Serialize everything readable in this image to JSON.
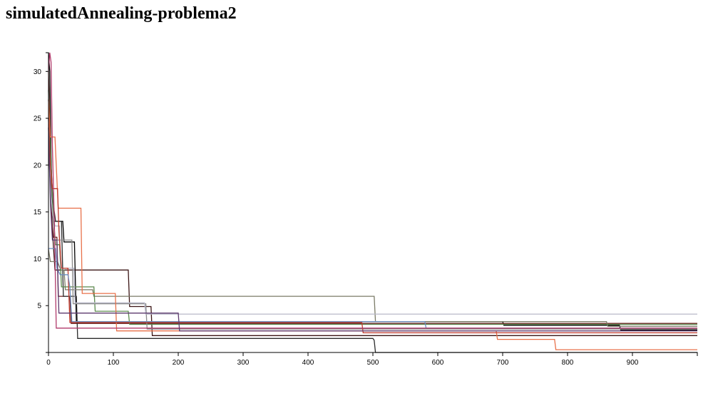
{
  "page": {
    "title": "simulatedAnnealing-problema2"
  },
  "chart_data": {
    "type": "line",
    "title": "simulatedAnnealing-problema2",
    "xlabel": "",
    "ylabel": "",
    "xlim": [
      0,
      1000
    ],
    "ylim": [
      0,
      32
    ],
    "x_ticks": [
      0,
      100,
      200,
      300,
      400,
      500,
      600,
      700,
      800,
      900
    ],
    "y_ticks": [
      5,
      10,
      15,
      20,
      25,
      30
    ],
    "grid": false,
    "legend": "none",
    "series": [
      {
        "color": "#000000",
        "points": [
          [
            0,
            32
          ],
          [
            2,
            30
          ],
          [
            4,
            21
          ],
          [
            6,
            15
          ],
          [
            8,
            14
          ],
          [
            22,
            14
          ],
          [
            24,
            11.8
          ],
          [
            40,
            11.8
          ],
          [
            43,
            3.3
          ],
          [
            700,
            3.3
          ],
          [
            702,
            2.9
          ],
          [
            880,
            2.9
          ],
          [
            882,
            2.4
          ],
          [
            1000,
            2.4
          ]
        ]
      },
      {
        "color": "#3a1414",
        "points": [
          [
            0,
            25
          ],
          [
            2,
            19
          ],
          [
            4,
            17
          ],
          [
            6,
            13
          ],
          [
            10,
            8.8
          ],
          [
            123,
            8.8
          ],
          [
            125,
            4.9
          ],
          [
            158,
            4.9
          ],
          [
            160,
            1.8
          ],
          [
            1000,
            1.8
          ]
        ]
      },
      {
        "color": "#6b1f1f",
        "points": [
          [
            0,
            30
          ],
          [
            3,
            22
          ],
          [
            5,
            14
          ],
          [
            8,
            12.3
          ],
          [
            13,
            12.3
          ],
          [
            15,
            6
          ],
          [
            33,
            6
          ],
          [
            35,
            3.1
          ],
          [
            380,
            3.1
          ],
          [
            1000,
            3.1
          ]
        ]
      },
      {
        "color": "#2b2b2b",
        "points": [
          [
            0,
            27
          ],
          [
            4,
            20
          ],
          [
            7,
            16
          ],
          [
            11,
            14
          ],
          [
            20,
            14
          ],
          [
            23,
            6
          ],
          [
            43,
            6
          ],
          [
            45,
            1.5
          ],
          [
            500,
            1.5
          ],
          [
            502,
            1.3
          ],
          [
            504,
            0
          ],
          [
            1000,
            0
          ]
        ]
      },
      {
        "color": "#7a7a66",
        "points": [
          [
            0,
            11
          ],
          [
            3,
            9.7
          ],
          [
            14,
            9.7
          ],
          [
            16,
            9.3
          ],
          [
            19,
            8.8
          ],
          [
            24,
            8.8
          ],
          [
            26,
            6.7
          ],
          [
            68,
            6.7
          ],
          [
            70,
            6
          ],
          [
            502,
            6
          ],
          [
            504,
            3.3
          ],
          [
            860,
            3.3
          ],
          [
            862,
            2.8
          ],
          [
            1000,
            2.8
          ]
        ]
      },
      {
        "color": "#5c8a4e",
        "points": [
          [
            0,
            28
          ],
          [
            4,
            20
          ],
          [
            8,
            14
          ],
          [
            11,
            11.5
          ],
          [
            17,
            11.5
          ],
          [
            20,
            7
          ],
          [
            70,
            7
          ],
          [
            72,
            4.4
          ],
          [
            123,
            4.4
          ],
          [
            125,
            3
          ],
          [
            1000,
            3
          ]
        ]
      },
      {
        "color": "#8a8a8a",
        "points": [
          [
            0,
            28
          ],
          [
            3,
            17
          ],
          [
            6,
            15
          ],
          [
            10,
            12
          ],
          [
            36,
            12
          ],
          [
            38,
            5.2
          ],
          [
            150,
            5.2
          ],
          [
            152,
            2.5
          ],
          [
            1000,
            2.5
          ]
        ]
      },
      {
        "color": "#b8b8c8",
        "points": [
          [
            0,
            25
          ],
          [
            3,
            18
          ],
          [
            6,
            15
          ],
          [
            10,
            13.5
          ],
          [
            17,
            13.5
          ],
          [
            19,
            9
          ],
          [
            39,
            9
          ],
          [
            41,
            5.3
          ],
          [
            148,
            5.3
          ],
          [
            150,
            4.1
          ],
          [
            1000,
            4.1
          ]
        ]
      },
      {
        "color": "#e8714a",
        "points": [
          [
            0,
            27
          ],
          [
            3,
            23
          ],
          [
            10,
            23
          ],
          [
            12,
            20
          ],
          [
            15,
            15.4
          ],
          [
            50,
            15.4
          ],
          [
            52,
            6.3
          ],
          [
            103,
            6.3
          ],
          [
            105,
            2.3
          ],
          [
            690,
            2.3
          ],
          [
            692,
            1.4
          ],
          [
            780,
            1.4
          ],
          [
            782,
            0.3
          ],
          [
            1000,
            0.3
          ]
        ]
      },
      {
        "color": "#c0392b",
        "points": [
          [
            0,
            25
          ],
          [
            3,
            20
          ],
          [
            6,
            17.5
          ],
          [
            14,
            17.5
          ],
          [
            16,
            13
          ],
          [
            20,
            9
          ],
          [
            30,
            9
          ],
          [
            33,
            3.2
          ],
          [
            483,
            3.2
          ],
          [
            485,
            2.1
          ],
          [
            1000,
            2.1
          ]
        ]
      },
      {
        "color": "#6c8ebf",
        "points": [
          [
            0,
            11.1
          ],
          [
            11,
            11.1
          ],
          [
            13,
            9
          ],
          [
            18,
            8.3
          ],
          [
            30,
            8.3
          ],
          [
            33,
            7
          ],
          [
            36,
            3.3
          ],
          [
            580,
            3.3
          ],
          [
            582,
            2.6
          ],
          [
            1000,
            2.6
          ]
        ]
      },
      {
        "color": "#b03a6b",
        "points": [
          [
            0,
            30
          ],
          [
            2,
            32
          ],
          [
            4,
            31
          ],
          [
            6,
            22
          ],
          [
            9,
            14
          ],
          [
            12,
            2.6
          ],
          [
            600,
            2.6
          ],
          [
            1000,
            2.6
          ]
        ]
      },
      {
        "color": "#5d3a6e",
        "points": [
          [
            0,
            24
          ],
          [
            3,
            16
          ],
          [
            6,
            12
          ],
          [
            13,
            12
          ],
          [
            16,
            4.2
          ],
          [
            200,
            4.2
          ],
          [
            202,
            2.3
          ],
          [
            1000,
            2.3
          ]
        ]
      }
    ]
  }
}
